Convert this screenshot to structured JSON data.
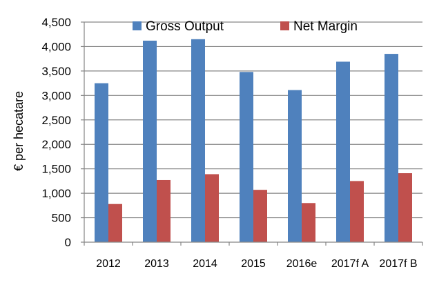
{
  "chart_data": {
    "type": "bar",
    "title": "",
    "xlabel": "",
    "ylabel": "€ per hecatare",
    "ylim": [
      0,
      4500
    ],
    "ytick_step": 500,
    "ytick_labels": [
      "0",
      "500",
      "1,000",
      "1,500",
      "2,000",
      "2,500",
      "3,000",
      "3,500",
      "4,000",
      "4,500"
    ],
    "grid": true,
    "legend_position": "top",
    "categories": [
      "2012",
      "2013",
      "2014",
      "2015",
      "2016e",
      "2017f A",
      "2017f B"
    ],
    "series": [
      {
        "name": "Gross Output",
        "color": "#4F81BD",
        "values": [
          3250,
          4120,
          4150,
          3480,
          3110,
          3690,
          3850
        ]
      },
      {
        "name": "Net Margin",
        "color": "#C0504D",
        "values": [
          780,
          1270,
          1390,
          1070,
          800,
          1250,
          1410
        ]
      }
    ]
  }
}
